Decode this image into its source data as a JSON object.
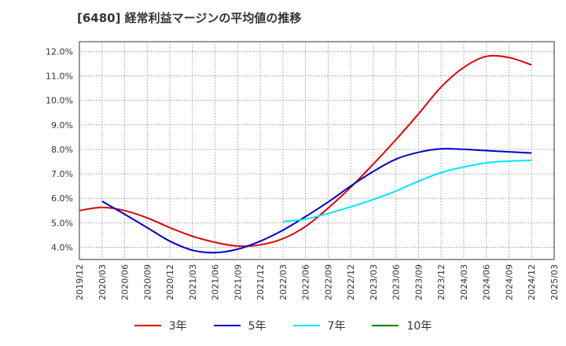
{
  "chart_data": {
    "type": "line",
    "title": "[6480]  経常利益マージンの平均値の推移",
    "xlabel": "",
    "ylabel": "",
    "ylim": [
      3.5,
      12.4
    ],
    "y_ticks": [
      "4.0%",
      "5.0%",
      "6.0%",
      "7.0%",
      "8.0%",
      "9.0%",
      "10.0%",
      "11.0%",
      "12.0%"
    ],
    "x_ticks": [
      "2019/12",
      "2020/03",
      "2020/06",
      "2020/09",
      "2020/12",
      "2021/03",
      "2021/06",
      "2021/09",
      "2021/12",
      "2022/03",
      "2022/06",
      "2022/09",
      "2022/12",
      "2023/03",
      "2023/06",
      "2023/09",
      "2023/12",
      "2024/03",
      "2024/06",
      "2024/09",
      "2024/12",
      "2025/03"
    ],
    "grid": true,
    "legend_position": "bottom",
    "series": [
      {
        "name": "3年",
        "color": "#e00000",
        "x": [
          "2019/12",
          "2020/03",
          "2020/06",
          "2020/09",
          "2020/12",
          "2021/03",
          "2021/06",
          "2021/09",
          "2021/12",
          "2022/03",
          "2022/06",
          "2022/09",
          "2022/12",
          "2023/03",
          "2023/06",
          "2023/09",
          "2023/12",
          "2024/03",
          "2024/06",
          "2024/09",
          "2024/12"
        ],
        "values": [
          5.5,
          5.63,
          5.5,
          5.2,
          4.8,
          4.45,
          4.2,
          4.05,
          4.1,
          4.35,
          4.85,
          5.6,
          6.45,
          7.4,
          8.4,
          9.45,
          10.55,
          11.35,
          11.8,
          11.75,
          11.45
        ]
      },
      {
        "name": "5年",
        "color": "#0000cc",
        "x": [
          "2020/03",
          "2020/06",
          "2020/09",
          "2020/12",
          "2021/03",
          "2021/06",
          "2021/09",
          "2021/12",
          "2022/03",
          "2022/06",
          "2022/09",
          "2022/12",
          "2023/03",
          "2023/06",
          "2023/09",
          "2023/12",
          "2024/03",
          "2024/06",
          "2024/09",
          "2024/12"
        ],
        "values": [
          5.88,
          5.35,
          4.8,
          4.25,
          3.88,
          3.78,
          3.92,
          4.25,
          4.7,
          5.25,
          5.85,
          6.5,
          7.1,
          7.6,
          7.88,
          8.02,
          8.0,
          7.95,
          7.9,
          7.85
        ]
      },
      {
        "name": "7年",
        "color": "#00e5ff",
        "x": [
          "2022/03",
          "2022/06",
          "2022/09",
          "2022/12",
          "2023/03",
          "2023/06",
          "2023/09",
          "2023/12",
          "2024/03",
          "2024/06",
          "2024/09",
          "2024/12"
        ],
        "values": [
          5.05,
          5.15,
          5.38,
          5.65,
          5.95,
          6.3,
          6.7,
          7.05,
          7.28,
          7.45,
          7.52,
          7.55
        ]
      },
      {
        "name": "10年",
        "color": "#008000",
        "x": [],
        "values": []
      }
    ]
  }
}
